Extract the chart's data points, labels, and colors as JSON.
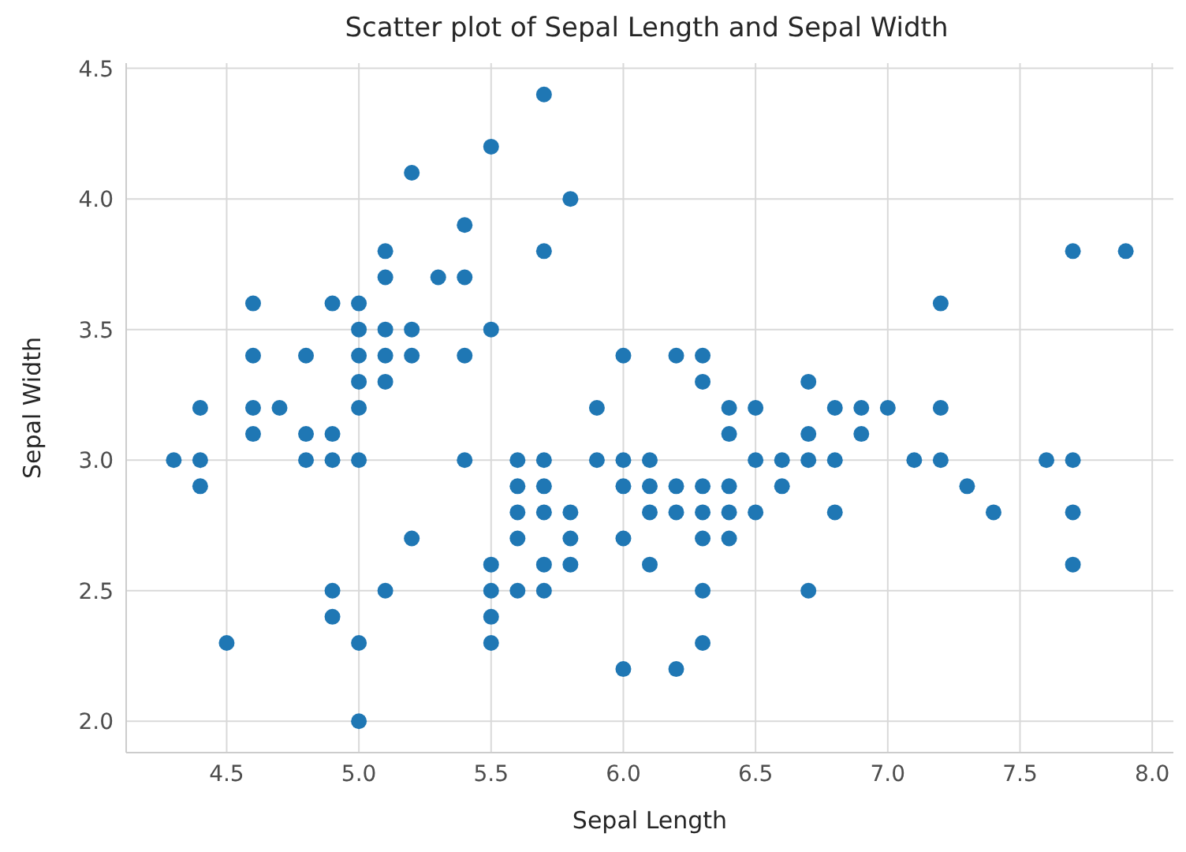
{
  "chart_data": {
    "type": "scatter",
    "title": "Scatter plot of Sepal Length and Sepal Width",
    "xlabel": "Sepal Length",
    "ylabel": "Sepal Width",
    "x": [
      4.3,
      4.4,
      4.4,
      4.4,
      4.5,
      4.6,
      4.6,
      4.6,
      4.6,
      4.7,
      4.8,
      4.8,
      4.8,
      4.9,
      4.9,
      4.9,
      4.9,
      4.9,
      5.0,
      5.0,
      5.0,
      5.0,
      5.0,
      5.0,
      5.0,
      5.0,
      5.1,
      5.1,
      5.1,
      5.1,
      5.1,
      5.1,
      5.2,
      5.2,
      5.2,
      5.2,
      5.3,
      5.4,
      5.4,
      5.4,
      5.4,
      5.5,
      5.5,
      5.5,
      5.5,
      5.5,
      5.5,
      5.6,
      5.6,
      5.6,
      5.6,
      5.6,
      5.7,
      5.7,
      5.7,
      5.7,
      5.7,
      5.7,
      5.7,
      5.8,
      5.8,
      5.8,
      5.8,
      5.9,
      5.9,
      6.0,
      6.0,
      6.0,
      6.0,
      6.0,
      6.1,
      6.1,
      6.1,
      6.1,
      6.2,
      6.2,
      6.2,
      6.2,
      6.3,
      6.3,
      6.3,
      6.3,
      6.3,
      6.3,
      6.3,
      6.4,
      6.4,
      6.4,
      6.4,
      6.4,
      6.5,
      6.5,
      6.5,
      6.6,
      6.6,
      6.7,
      6.7,
      6.7,
      6.7,
      6.8,
      6.8,
      6.8,
      6.9,
      6.9,
      7.0,
      7.1,
      7.2,
      7.2,
      7.2,
      7.3,
      7.4,
      7.6,
      7.7,
      7.7,
      7.7,
      7.7,
      7.9
    ],
    "series": [
      {
        "color": "#1f77b4",
        "values": [
          3.0,
          2.9,
          3.0,
          3.2,
          2.3,
          3.1,
          3.4,
          3.6,
          3.2,
          3.2,
          3.4,
          3.0,
          3.1,
          3.0,
          3.1,
          3.6,
          2.4,
          2.5,
          3.6,
          3.4,
          3.0,
          3.2,
          3.5,
          3.3,
          2.0,
          2.3,
          3.5,
          3.8,
          3.7,
          3.3,
          3.4,
          2.5,
          3.5,
          3.4,
          4.1,
          2.7,
          3.7,
          3.9,
          3.7,
          3.4,
          3.0,
          4.2,
          3.5,
          2.3,
          2.4,
          2.5,
          2.6,
          2.9,
          3.0,
          2.5,
          2.7,
          2.8,
          4.4,
          3.8,
          2.8,
          2.6,
          3.0,
          2.9,
          2.5,
          4.0,
          2.7,
          2.6,
          2.8,
          3.0,
          3.2,
          2.2,
          2.9,
          2.7,
          3.4,
          3.0,
          2.9,
          2.8,
          3.0,
          2.6,
          2.2,
          2.9,
          2.8,
          3.4,
          3.3,
          2.5,
          2.3,
          2.9,
          2.7,
          2.8,
          3.4,
          3.2,
          2.9,
          2.7,
          2.8,
          3.1,
          2.8,
          3.0,
          3.2,
          2.9,
          3.0,
          3.1,
          3.0,
          2.5,
          3.3,
          2.8,
          3.0,
          3.2,
          3.1,
          3.2,
          3.2,
          3.0,
          3.6,
          3.2,
          3.0,
          2.9,
          2.8,
          3.0,
          3.8,
          2.6,
          2.8,
          3.0,
          3.8
        ]
      }
    ],
    "xlim": [
      4.12,
      8.08
    ],
    "ylim": [
      1.88,
      4.52
    ],
    "xticks": [
      {
        "value": 4.5,
        "label": "4.5"
      },
      {
        "value": 5,
        "label": "5.0"
      },
      {
        "value": 5.5,
        "label": "5.5"
      },
      {
        "value": 6,
        "label": "6.0"
      },
      {
        "value": 6.5,
        "label": "6.5"
      },
      {
        "value": 7,
        "label": "7.0"
      },
      {
        "value": 7.5,
        "label": "7.5"
      },
      {
        "value": 8,
        "label": "8.0"
      }
    ],
    "yticks": [
      {
        "value": 2,
        "label": "2.0"
      },
      {
        "value": 2.5,
        "label": "2.5"
      },
      {
        "value": 3,
        "label": "3.0"
      },
      {
        "value": 3.5,
        "label": "3.5"
      },
      {
        "value": 4,
        "label": "4.0"
      },
      {
        "value": 4.5,
        "label": "4.5"
      }
    ],
    "grid": true,
    "marker": "circle"
  }
}
